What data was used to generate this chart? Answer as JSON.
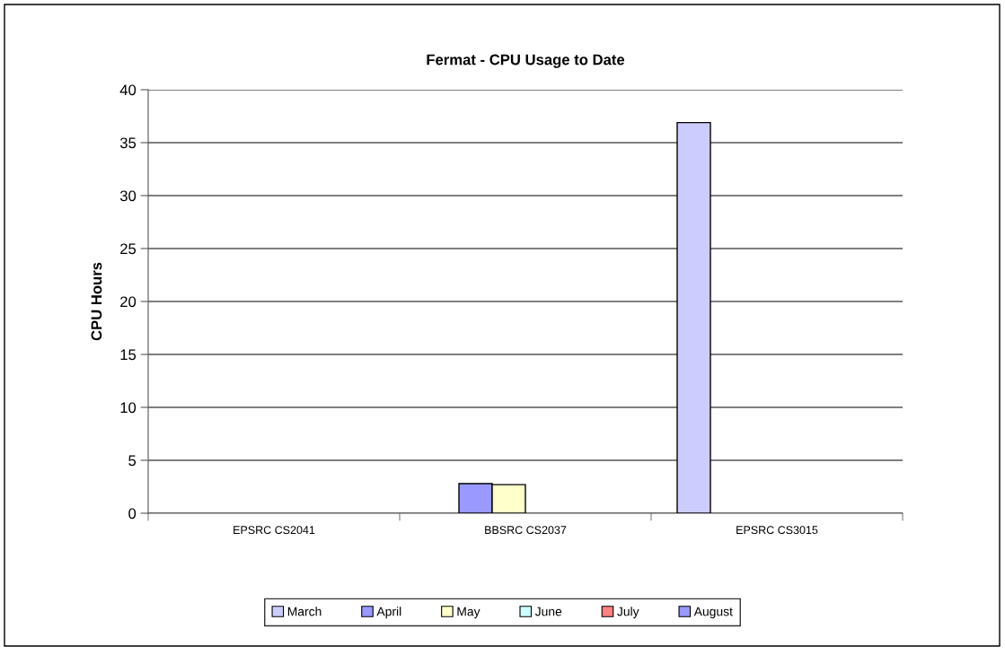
{
  "chart_data": {
    "type": "bar",
    "title": "Fermat - CPU Usage to Date",
    "ylabel": "CPU Hours",
    "categories": [
      "EPSRC CS2041",
      "BBSRC CS2037",
      "EPSRC CS3015"
    ],
    "series": [
      {
        "name": "March",
        "color": "#ccccff",
        "values": [
          null,
          null,
          36.9
        ]
      },
      {
        "name": "April",
        "color": "#9999ff",
        "values": [
          null,
          2.8,
          null
        ]
      },
      {
        "name": "May",
        "color": "#ffffcc",
        "values": [
          null,
          2.7,
          null
        ]
      },
      {
        "name": "June",
        "color": "#ccffff",
        "values": [
          null,
          null,
          null
        ]
      },
      {
        "name": "July",
        "color": "#ff8080",
        "values": [
          null,
          null,
          null
        ]
      },
      {
        "name": "August",
        "color": "#9999ff",
        "values": [
          null,
          null,
          null
        ]
      }
    ],
    "ylim": [
      0,
      40
    ],
    "yticks": [
      0,
      5,
      10,
      15,
      20,
      25,
      30,
      35,
      40
    ],
    "grid": "y",
    "legend": "bottom"
  }
}
